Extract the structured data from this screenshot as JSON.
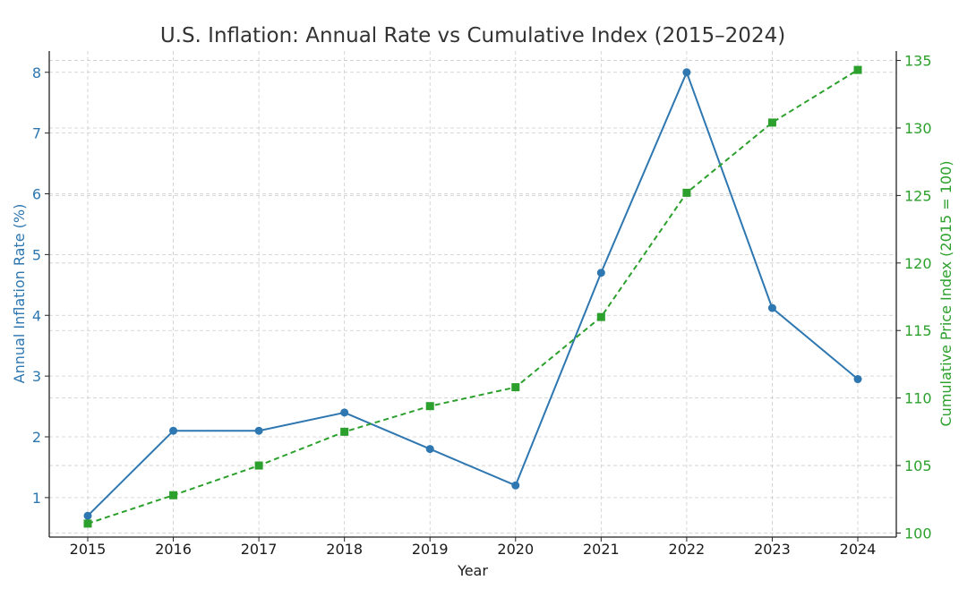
{
  "chart_data": {
    "type": "line",
    "title": "U.S. Inflation: Annual Rate vs Cumulative Index (2015–2024)",
    "xlabel": "Year",
    "ylabel_left": "Annual Inflation Rate (%)",
    "ylabel_right": "Cumulative Price Index (2015 = 100)",
    "x": [
      2015,
      2016,
      2017,
      2018,
      2019,
      2020,
      2021,
      2022,
      2023,
      2024
    ],
    "x_tick_labels": [
      "2015",
      "2016",
      "2017",
      "2018",
      "2019",
      "2020",
      "2021",
      "2022",
      "2023",
      "2024"
    ],
    "ylim_left": [
      0.35,
      8.35
    ],
    "ylim_right": [
      99.7,
      135.7
    ],
    "yticks_left": [
      "1",
      "2",
      "3",
      "4",
      "5",
      "6",
      "7",
      "8"
    ],
    "yticks_right": [
      "100",
      "105",
      "110",
      "115",
      "120",
      "125",
      "130",
      "135"
    ],
    "grid": true,
    "series": [
      {
        "axis": "left",
        "color": "#2e77b0",
        "marker": "circle",
        "style": "solid",
        "values": [
          0.7,
          2.1,
          2.1,
          2.4,
          1.8,
          1.2,
          4.7,
          8.0,
          4.12,
          2.95
        ]
      },
      {
        "axis": "right",
        "color": "#2ca02c",
        "marker": "square",
        "style": "dashed",
        "values": [
          100.7,
          102.8,
          105.0,
          107.5,
          109.4,
          110.8,
          116.0,
          125.2,
          130.4,
          134.3
        ]
      }
    ]
  }
}
